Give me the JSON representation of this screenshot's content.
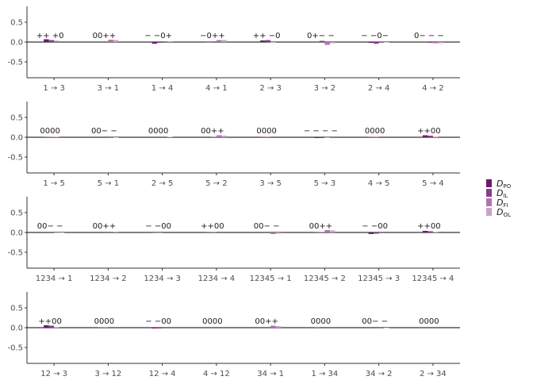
{
  "chart_data": {
    "type": "bar",
    "ylim": [
      -0.9,
      0.9
    ],
    "yticks": [
      0.5,
      0.0,
      -0.5
    ],
    "ytick_labels": [
      "0.5",
      "0.0",
      "-0.5"
    ],
    "legend": {
      "placement": "right",
      "entries": [
        {
          "label": "D",
          "sub": "PO",
          "color": "#6a1b6a"
        },
        {
          "label": "D",
          "sub": "IL",
          "color": "#8e3a8e"
        },
        {
          "label": "D",
          "sub": "FI",
          "color": "#b073b0"
        },
        {
          "label": "D",
          "sub": "OL",
          "color": "#caa1ca"
        }
      ]
    },
    "panels": [
      {
        "categories": [
          "1 → 3",
          "3 → 1",
          "1 → 4",
          "4 → 1",
          "2 → 3",
          "3 → 2",
          "2 → 4",
          "4 → 2"
        ],
        "signs": [
          "++ +0",
          "00++",
          "− −0+",
          "−0++",
          "++ −0",
          "0+− −",
          "− −0−",
          "0− − −"
        ],
        "values": [
          [
            0.07,
            0.05,
            0.03,
            0.0
          ],
          [
            0.0,
            0.0,
            0.06,
            0.05
          ],
          [
            -0.04,
            -0.02,
            0.0,
            0.02
          ],
          [
            -0.01,
            0.0,
            0.05,
            0.05
          ],
          [
            0.04,
            0.05,
            -0.01,
            0.0
          ],
          [
            0.0,
            0.03,
            -0.07,
            -0.03
          ],
          [
            -0.02,
            -0.04,
            0.0,
            -0.01
          ],
          [
            0.0,
            -0.02,
            -0.03,
            -0.03
          ]
        ]
      },
      {
        "categories": [
          "1 → 5",
          "5 → 1",
          "2 → 5",
          "5 → 2",
          "3 → 5",
          "5 → 3",
          "4 → 5",
          "5 → 4"
        ],
        "signs": [
          "0000",
          "00− −",
          "0000",
          "00++",
          "0000",
          "− − − −",
          "0000",
          "++00"
        ],
        "values": [
          [
            0.01,
            0.01,
            0.01,
            0.0
          ],
          [
            0.0,
            0.0,
            -0.02,
            -0.01
          ],
          [
            0.0,
            0.0,
            0.0,
            0.01
          ],
          [
            0.0,
            0.01,
            0.05,
            0.04
          ],
          [
            0.01,
            0.01,
            0.0,
            0.0
          ],
          [
            -0.02,
            -0.02,
            -0.01,
            0.0
          ],
          [
            0.01,
            0.01,
            0.0,
            0.0
          ],
          [
            0.05,
            0.04,
            0.01,
            0.0
          ]
        ]
      },
      {
        "categories": [
          "1234 → 1",
          "1234 → 2",
          "1234 → 3",
          "1234 → 4",
          "12345 → 1",
          "12345 → 2",
          "12345 → 3",
          "12345 → 4"
        ],
        "signs": [
          "00− −",
          "00++",
          "− −00",
          "++00",
          "00− −",
          "00++",
          "− −00",
          "++00"
        ],
        "values": [
          [
            0.0,
            0.0,
            -0.01,
            -0.01
          ],
          [
            0.0,
            0.0,
            0.02,
            0.02
          ],
          [
            -0.01,
            -0.01,
            0.0,
            0.0
          ],
          [
            0.01,
            0.01,
            0.0,
            0.0
          ],
          [
            0.0,
            0.0,
            -0.04,
            -0.03
          ],
          [
            0.01,
            0.01,
            0.06,
            0.05
          ],
          [
            -0.04,
            -0.03,
            0.0,
            0.0
          ],
          [
            0.04,
            0.03,
            0.01,
            0.0
          ]
        ]
      },
      {
        "categories": [
          "12 → 3",
          "3 → 12",
          "12 → 4",
          "4 → 12",
          "34 → 1",
          "1 → 34",
          "34 → 2",
          "2 → 34"
        ],
        "signs": [
          "++00",
          "0000",
          "− −00",
          "0000",
          "00++",
          "0000",
          "00− −",
          "0000"
        ],
        "values": [
          [
            0.06,
            0.05,
            0.01,
            0.0
          ],
          [
            0.01,
            0.01,
            0.0,
            0.0
          ],
          [
            -0.02,
            -0.02,
            0.0,
            0.0
          ],
          [
            0.0,
            0.0,
            0.0,
            0.0
          ],
          [
            0.0,
            0.0,
            0.05,
            0.04
          ],
          [
            0.01,
            0.0,
            0.0,
            0.0
          ],
          [
            0.0,
            0.0,
            -0.02,
            -0.01
          ],
          [
            0.0,
            0.0,
            0.0,
            0.0
          ]
        ]
      }
    ]
  }
}
